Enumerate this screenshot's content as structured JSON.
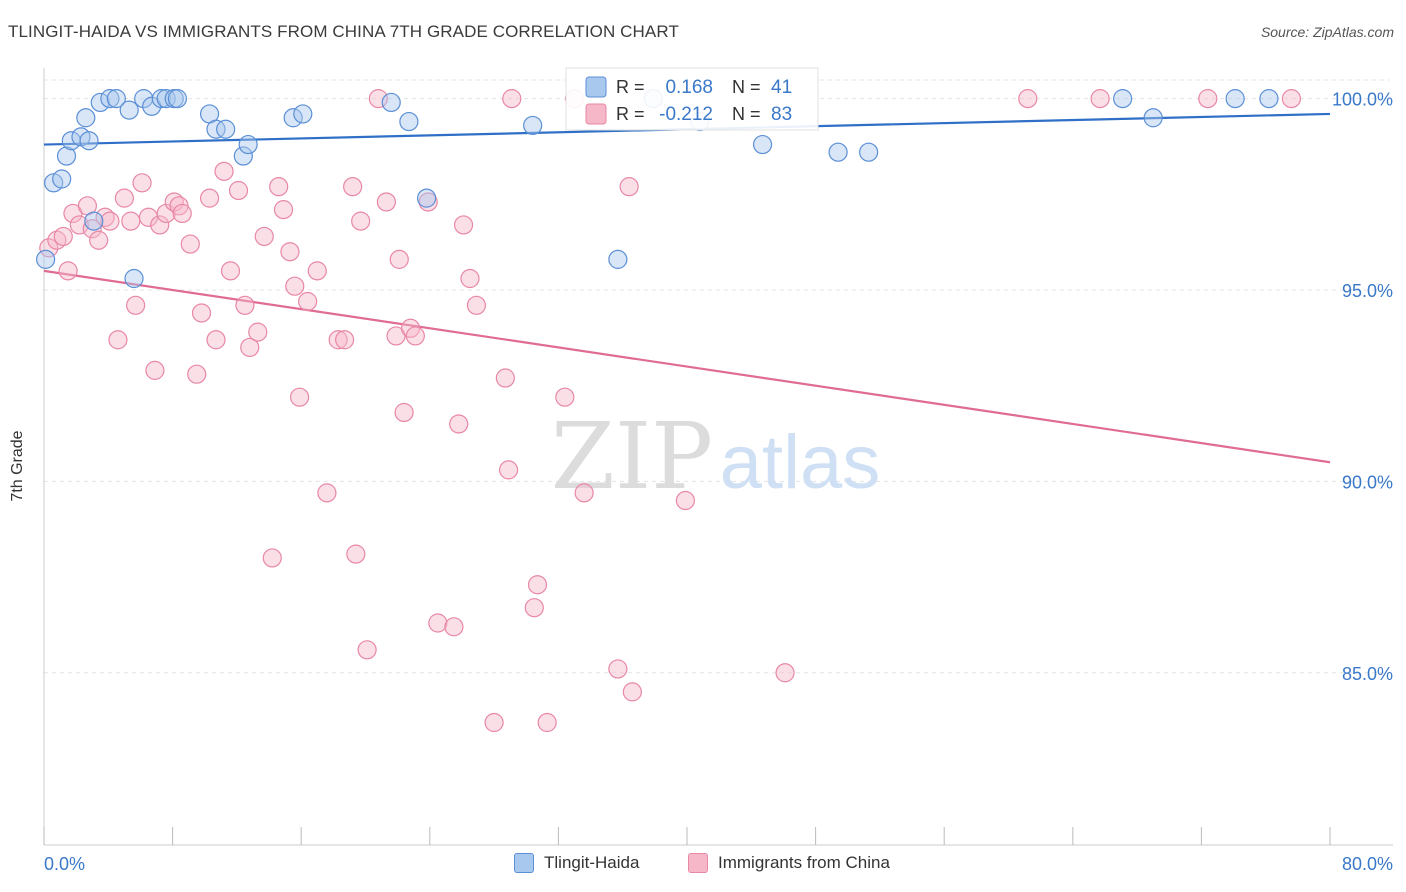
{
  "title": "TLINGIT-HAIDA VS IMMIGRANTS FROM CHINA 7TH GRADE CORRELATION CHART",
  "source": "Source: ZipAtlas.com",
  "watermark": {
    "zip": "ZIP",
    "atlas": "atlas"
  },
  "colors": {
    "blue_fill": "#a9c8ee",
    "blue_stroke": "#5b8fd6",
    "blue_line": "#2f6fc7",
    "pink_fill": "#f6b7c9",
    "pink_stroke": "#e887a6",
    "pink_line": "#e06b93",
    "axis_text": "#3a78c9",
    "grid": "#e3e3e3"
  },
  "legend": {
    "rows": [
      {
        "r_label": "R =",
        "r_value": "0.168",
        "n_label": "N =",
        "n_value": "41"
      },
      {
        "r_label": "R =",
        "r_value": "-0.212",
        "n_label": "N =",
        "n_value": "83"
      }
    ]
  },
  "chart_data": {
    "type": "scatter",
    "title": "TLINGIT-HAIDA VS IMMIGRANTS FROM CHINA 7TH GRADE CORRELATION CHART",
    "xlabel": "",
    "ylabel": "7th Grade",
    "xlim": [
      0,
      80
    ],
    "ylim": [
      80.5,
      100.8
    ],
    "x_tick_labels": [
      "0.0%",
      "80.0%"
    ],
    "y_ticks": [
      85,
      90,
      95,
      100
    ],
    "y_tick_labels": [
      "85.0%",
      "90.0%",
      "95.0%",
      "100.0%"
    ],
    "grid": true,
    "legend_position": "top-center",
    "series": [
      {
        "name": "Tlingit-Haida",
        "r": 0.168,
        "n": 41,
        "trend": {
          "x": [
            0,
            80
          ],
          "y": [
            98.8,
            99.6
          ]
        },
        "points": [
          [
            0.6,
            97.8
          ],
          [
            1.1,
            97.9
          ],
          [
            1.4,
            98.5
          ],
          [
            1.7,
            98.9
          ],
          [
            2.3,
            99.0
          ],
          [
            2.6,
            99.5
          ],
          [
            2.8,
            98.9
          ],
          [
            3.1,
            96.8
          ],
          [
            3.5,
            99.9
          ],
          [
            4.1,
            100.0
          ],
          [
            4.5,
            100.0
          ],
          [
            5.3,
            99.7
          ],
          [
            5.6,
            95.3
          ],
          [
            6.2,
            100.0
          ],
          [
            6.7,
            99.8
          ],
          [
            7.3,
            100.0
          ],
          [
            7.6,
            100.0
          ],
          [
            8.1,
            100.0
          ],
          [
            8.3,
            100.0
          ],
          [
            10.3,
            99.6
          ],
          [
            10.7,
            99.2
          ],
          [
            11.3,
            99.2
          ],
          [
            12.4,
            98.5
          ],
          [
            12.7,
            98.8
          ],
          [
            15.5,
            99.5
          ],
          [
            16.1,
            99.6
          ],
          [
            21.6,
            99.9
          ],
          [
            22.7,
            99.4
          ],
          [
            23.8,
            97.4
          ],
          [
            30.4,
            99.3
          ],
          [
            35.7,
            95.8
          ],
          [
            37.9,
            100.0
          ],
          [
            40.8,
            99.4
          ],
          [
            44.7,
            98.8
          ],
          [
            49.4,
            98.6
          ],
          [
            51.3,
            98.6
          ],
          [
            67.1,
            100.0
          ],
          [
            69.0,
            99.5
          ],
          [
            74.1,
            100.0
          ],
          [
            76.2,
            100.0
          ],
          [
            0.1,
            95.8
          ]
        ]
      },
      {
        "name": "Immigrants from China",
        "r": -0.212,
        "n": 83,
        "trend": {
          "x": [
            0,
            80
          ],
          "y": [
            95.5,
            90.5
          ]
        },
        "points": [
          [
            0.3,
            96.1
          ],
          [
            0.8,
            96.3
          ],
          [
            1.2,
            96.4
          ],
          [
            1.5,
            95.5
          ],
          [
            1.8,
            97.0
          ],
          [
            2.2,
            96.7
          ],
          [
            2.7,
            97.2
          ],
          [
            3.0,
            96.6
          ],
          [
            3.4,
            96.3
          ],
          [
            3.8,
            96.9
          ],
          [
            4.1,
            96.8
          ],
          [
            4.6,
            93.7
          ],
          [
            5.0,
            97.4
          ],
          [
            5.4,
            96.8
          ],
          [
            5.7,
            94.6
          ],
          [
            6.1,
            97.8
          ],
          [
            6.5,
            96.9
          ],
          [
            6.9,
            92.9
          ],
          [
            7.2,
            96.7
          ],
          [
            7.6,
            97.0
          ],
          [
            8.1,
            97.3
          ],
          [
            8.4,
            97.2
          ],
          [
            8.6,
            97.0
          ],
          [
            9.1,
            96.2
          ],
          [
            9.5,
            92.8
          ],
          [
            9.8,
            94.4
          ],
          [
            10.3,
            97.4
          ],
          [
            10.7,
            93.7
          ],
          [
            11.2,
            98.1
          ],
          [
            11.6,
            95.5
          ],
          [
            12.1,
            97.6
          ],
          [
            12.5,
            94.6
          ],
          [
            12.8,
            93.5
          ],
          [
            13.3,
            93.9
          ],
          [
            13.7,
            96.4
          ],
          [
            14.2,
            88.0
          ],
          [
            14.6,
            97.7
          ],
          [
            14.9,
            97.1
          ],
          [
            15.3,
            96.0
          ],
          [
            15.6,
            95.1
          ],
          [
            15.9,
            92.2
          ],
          [
            16.4,
            94.7
          ],
          [
            17.0,
            95.5
          ],
          [
            17.6,
            89.7
          ],
          [
            18.3,
            93.7
          ],
          [
            18.7,
            93.7
          ],
          [
            19.2,
            97.7
          ],
          [
            19.4,
            88.1
          ],
          [
            19.7,
            96.8
          ],
          [
            20.1,
            85.6
          ],
          [
            20.8,
            100.0
          ],
          [
            21.3,
            97.3
          ],
          [
            21.9,
            93.8
          ],
          [
            22.1,
            95.8
          ],
          [
            22.4,
            91.8
          ],
          [
            22.8,
            94.0
          ],
          [
            23.1,
            93.8
          ],
          [
            23.9,
            97.3
          ],
          [
            24.5,
            86.3
          ],
          [
            25.5,
            86.2
          ],
          [
            25.8,
            91.5
          ],
          [
            26.1,
            96.7
          ],
          [
            26.5,
            95.3
          ],
          [
            26.9,
            94.6
          ],
          [
            28.0,
            83.7
          ],
          [
            28.7,
            92.7
          ],
          [
            28.9,
            90.3
          ],
          [
            29.1,
            100.0
          ],
          [
            30.5,
            86.7
          ],
          [
            30.7,
            87.3
          ],
          [
            31.3,
            83.7
          ],
          [
            32.4,
            92.2
          ],
          [
            33.0,
            100.0
          ],
          [
            33.6,
            89.7
          ],
          [
            35.7,
            85.1
          ],
          [
            36.4,
            97.7
          ],
          [
            36.6,
            84.5
          ],
          [
            39.9,
            89.5
          ],
          [
            46.1,
            85.0
          ],
          [
            61.2,
            100.0
          ],
          [
            65.7,
            100.0
          ],
          [
            72.4,
            100.0
          ],
          [
            77.6,
            100.0
          ]
        ]
      }
    ]
  },
  "bottom_legend": [
    "Tlingit-Haida",
    "Immigrants from China"
  ]
}
